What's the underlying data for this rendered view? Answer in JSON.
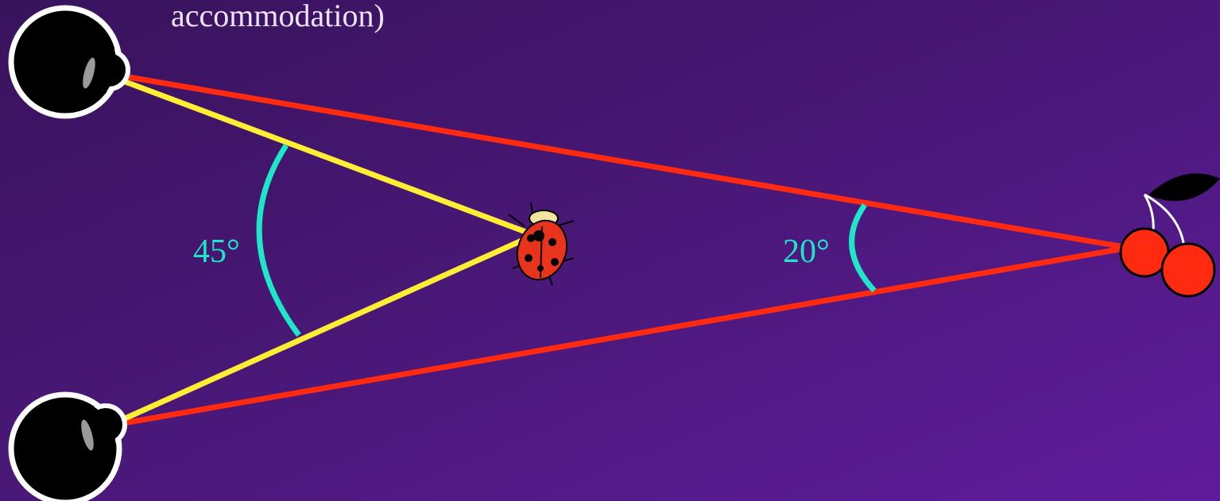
{
  "caption": "accommodation)",
  "angles": {
    "near": "45°",
    "far": "20°"
  }
}
